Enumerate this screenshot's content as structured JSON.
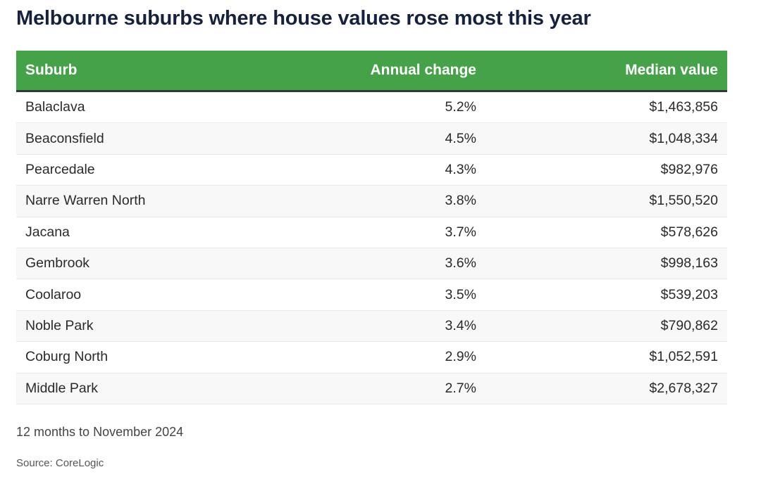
{
  "chart_data": {
    "type": "table",
    "title": "Melbourne suburbs where house values rose most this year",
    "columns": [
      "Suburb",
      "Annual change",
      "Median value"
    ],
    "rows": [
      {
        "suburb": "Balaclava",
        "annual_change": "5.2%",
        "median_value": "$1,463,856"
      },
      {
        "suburb": "Beaconsfield",
        "annual_change": "4.5%",
        "median_value": "$1,048,334"
      },
      {
        "suburb": "Pearcedale",
        "annual_change": "4.3%",
        "median_value": "$982,976"
      },
      {
        "suburb": "Narre Warren North",
        "annual_change": "3.8%",
        "median_value": "$1,550,520"
      },
      {
        "suburb": "Jacana",
        "annual_change": "3.7%",
        "median_value": "$578,626"
      },
      {
        "suburb": "Gembrook",
        "annual_change": "3.6%",
        "median_value": "$998,163"
      },
      {
        "suburb": "Coolaroo",
        "annual_change": "3.5%",
        "median_value": "$539,203"
      },
      {
        "suburb": "Noble Park",
        "annual_change": "3.4%",
        "median_value": "$790,862"
      },
      {
        "suburb": "Coburg North",
        "annual_change": "2.9%",
        "median_value": "$1,052,591"
      },
      {
        "suburb": "Middle Park",
        "annual_change": "2.7%",
        "median_value": "$2,678,327"
      }
    ],
    "note": "12 months to November 2024",
    "source": "Source: CoreLogic",
    "header_color": "#45a248"
  }
}
